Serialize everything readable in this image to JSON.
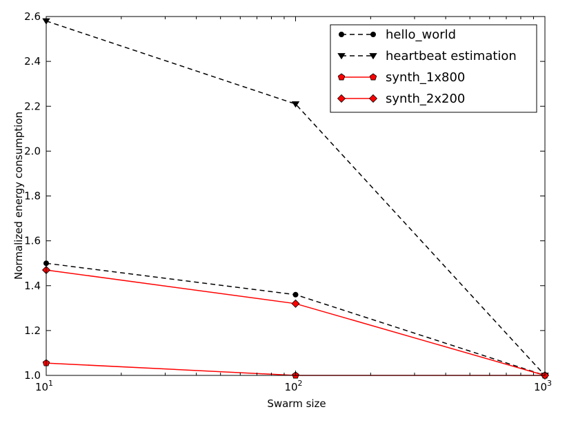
{
  "chart_data": {
    "type": "line",
    "title": "",
    "xlabel": "Swarm size",
    "ylabel": "Normalized energy consumption",
    "xscale": "log",
    "xlim": [
      10,
      1000
    ],
    "ylim": [
      1.0,
      2.6
    ],
    "x_ticks": [
      {
        "value": 10,
        "base": "10",
        "exp": "1"
      },
      {
        "value": 100,
        "base": "10",
        "exp": "2"
      },
      {
        "value": 1000,
        "base": "10",
        "exp": "3"
      }
    ],
    "y_ticks": [
      {
        "value": 1.0,
        "label": "1.0"
      },
      {
        "value": 1.2,
        "label": "1.2"
      },
      {
        "value": 1.4,
        "label": "1.4"
      },
      {
        "value": 1.6,
        "label": "1.6"
      },
      {
        "value": 1.8,
        "label": "1.8"
      },
      {
        "value": 2.0,
        "label": "2.0"
      },
      {
        "value": 2.2,
        "label": "2.2"
      },
      {
        "value": 2.4,
        "label": "2.4"
      },
      {
        "value": 2.6,
        "label": "2.6"
      }
    ],
    "grid": false,
    "legend_position": "top-right",
    "x": [
      10,
      100,
      1000
    ],
    "series": [
      {
        "name": "hello_world",
        "values": [
          1.5,
          1.36,
          1.0
        ],
        "color": "#000000",
        "dash": "dashed",
        "marker": "circle"
      },
      {
        "name": "heartbeat estimation",
        "values": [
          2.58,
          2.21,
          1.0
        ],
        "color": "#000000",
        "dash": "dashed",
        "marker": "triangle-down"
      },
      {
        "name": "synth_1x800",
        "values": [
          1.055,
          1.0,
          1.0
        ],
        "color": "#ff0000",
        "dash": "solid",
        "marker": "pentagon"
      },
      {
        "name": "synth_2x200",
        "values": [
          1.47,
          1.32,
          1.0
        ],
        "color": "#ff0000",
        "dash": "solid",
        "marker": "diamond"
      }
    ]
  }
}
